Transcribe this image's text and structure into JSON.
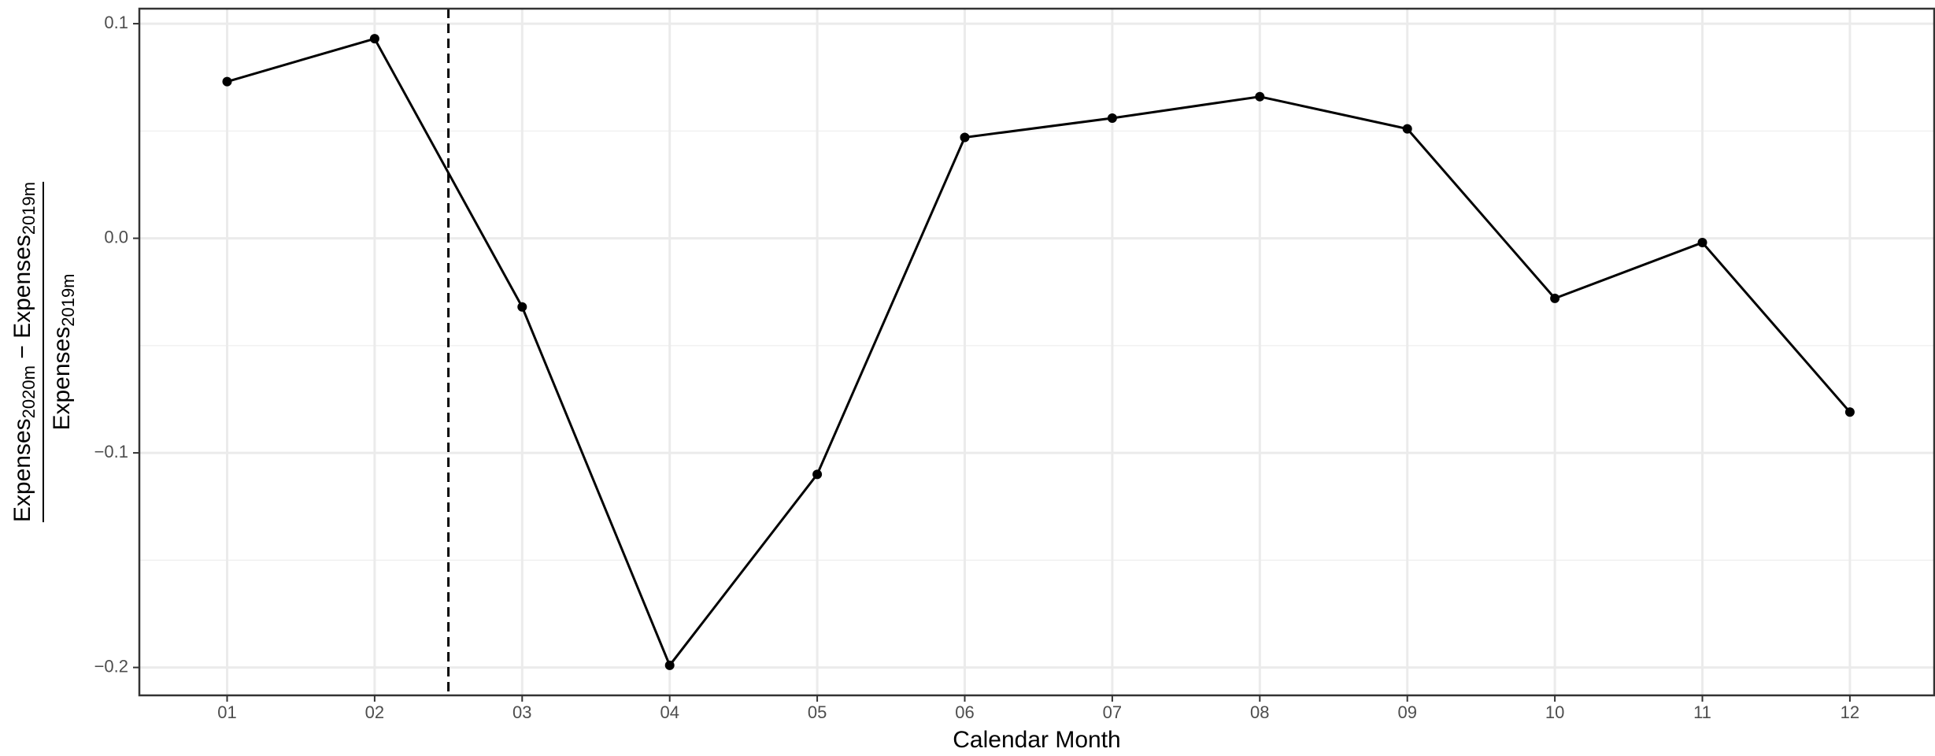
{
  "chart_data": {
    "type": "line",
    "categories": [
      "01",
      "02",
      "03",
      "04",
      "05",
      "06",
      "07",
      "08",
      "09",
      "10",
      "11",
      "12"
    ],
    "values": [
      0.073,
      0.093,
      -0.032,
      -0.199,
      -0.11,
      0.047,
      0.056,
      0.066,
      0.051,
      -0.028,
      -0.002,
      -0.081
    ],
    "color": "#000000",
    "xlabel": "Calendar Month",
    "ylabel": {
      "numerator": [
        {
          "text": "Expenses"
        },
        {
          "text": "2020m",
          "sub": true
        },
        {
          "text": " − Expenses"
        },
        {
          "text": "2019m",
          "sub": true
        }
      ],
      "denominator": [
        {
          "text": "Expenses"
        },
        {
          "text": "2019m",
          "sub": true
        }
      ]
    },
    "ylim": [
      -0.213,
      0.107
    ],
    "yticks": [
      {
        "value": -0.2,
        "label": "−0.2"
      },
      {
        "value": -0.1,
        "label": "−0.1"
      },
      {
        "value": 0,
        "label": "0.0"
      },
      0.1
    ],
    "grid": true,
    "reference_line": {
      "x": 2.5,
      "style": "dashed"
    }
  }
}
